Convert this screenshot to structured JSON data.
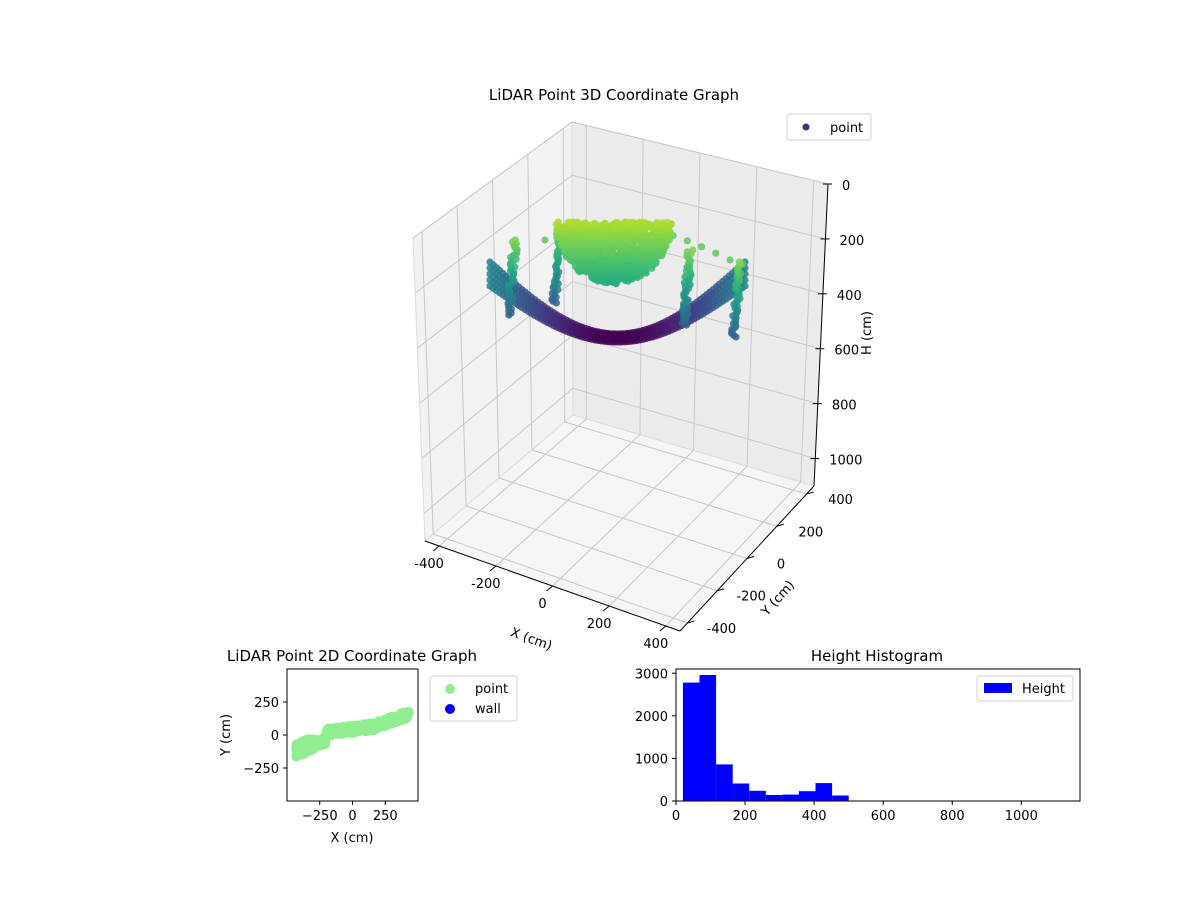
{
  "chart_data": [
    {
      "type": "scatter3d",
      "title": "LiDAR Point 3D Coordinate Graph",
      "xlabel": "X (cm)",
      "ylabel": "Y (cm)",
      "zlabel": "H (cm)",
      "xlim": [
        -450,
        450
      ],
      "ylim": [
        -450,
        450
      ],
      "zlim": [
        1100,
        0
      ],
      "x_ticks": [
        -400,
        -200,
        0,
        200,
        400
      ],
      "y_ticks": [
        -400,
        -200,
        0,
        200,
        400
      ],
      "z_ticks": [
        0,
        200,
        400,
        600,
        800,
        1000
      ],
      "z_inverted": true,
      "grid": true,
      "colormap": "viridis",
      "legend": {
        "entries": [
          "point"
        ],
        "placement": "upper-right"
      },
      "series": [
        {
          "name": "point",
          "color": "#3b3486"
        }
      ]
    },
    {
      "type": "scatter",
      "title": "LiDAR Point 2D Coordinate Graph",
      "xlabel": "X (cm)",
      "ylabel": "Y (cm)",
      "xlim": [
        -500,
        500
      ],
      "ylim": [
        -500,
        500
      ],
      "x_ticks": [
        -250,
        0,
        250
      ],
      "y_ticks": [
        -250,
        0,
        250
      ],
      "legend": {
        "entries": [
          "point",
          "wall"
        ],
        "placement": "outside-right"
      },
      "series": [
        {
          "name": "point",
          "color": "#90ee90"
        },
        {
          "name": "wall",
          "color": "#0000ff"
        }
      ]
    },
    {
      "type": "histogram",
      "title": "Height Histogram",
      "xlabel": "",
      "ylabel": "",
      "xlim": [
        0,
        1170
      ],
      "ylim": [
        0,
        3100
      ],
      "x_ticks": [
        0,
        200,
        400,
        600,
        800,
        1000
      ],
      "y_ticks": [
        0,
        1000,
        2000,
        3000
      ],
      "bin_edges": [
        20,
        68,
        116,
        164,
        212,
        260,
        308,
        356,
        404,
        452,
        500
      ],
      "counts": [
        2780,
        2960,
        860,
        410,
        240,
        140,
        150,
        230,
        420,
        130
      ],
      "legend": {
        "entries": [
          "Height"
        ],
        "placement": "upper-right"
      },
      "series": [
        {
          "name": "Height",
          "color": "#0000ff"
        }
      ]
    }
  ]
}
